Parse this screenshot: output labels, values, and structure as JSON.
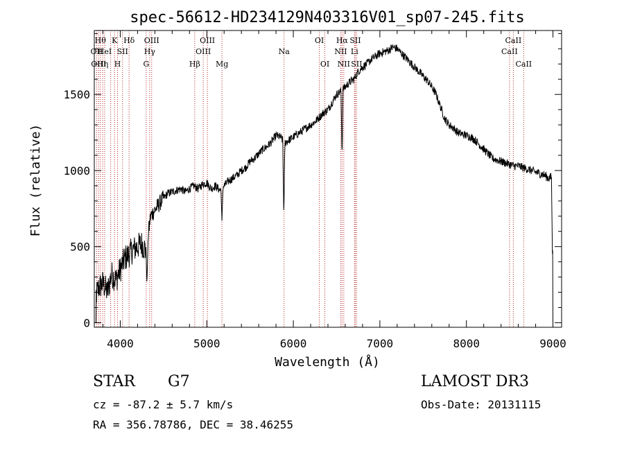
{
  "chart_data": {
    "type": "line",
    "title": "spec-56612-HD234129N403316V01_sp07-245.fits",
    "xlabel": "Wavelength (Å)",
    "ylabel": "Flux (relative)",
    "xlim": [
      3700,
      9100
    ],
    "ylim": [
      -30,
      1920
    ],
    "xticks": [
      4000,
      5000,
      6000,
      7000,
      8000,
      9000
    ],
    "yticks": [
      0,
      500,
      1000,
      1500
    ],
    "grid": false,
    "series": [
      {
        "x": [
          3700,
          3750,
          3800,
          3850,
          3900,
          3950,
          4000,
          4050,
          4100,
          4150,
          4200,
          4250,
          4300,
          4350,
          4400,
          4450,
          4500,
          4550,
          4600,
          4650,
          4700,
          4750,
          4800,
          4850,
          4900,
          4950,
          5000,
          5050,
          5100,
          5150,
          5200,
          5250,
          5300,
          5350,
          5400,
          5450,
          5500,
          5550,
          5600,
          5650,
          5700,
          5750,
          5800,
          5850,
          5900,
          5950,
          6000,
          6050,
          6100,
          6150,
          6200,
          6250,
          6300,
          6350,
          6400,
          6450,
          6500,
          6550,
          6600,
          6650,
          6700,
          6750,
          6800,
          6850,
          6900,
          6950,
          7000,
          7050,
          7100,
          7150,
          7200,
          7250,
          7300,
          7350,
          7400,
          7450,
          7500,
          7550,
          7600,
          7650,
          7700,
          7750,
          7800,
          7850,
          7900,
          7950,
          8000,
          8050,
          8100,
          8150,
          8200,
          8250,
          8300,
          8350,
          8400,
          8450,
          8500,
          8550,
          8600,
          8650,
          8700,
          8750,
          8800,
          8850,
          8900,
          8950,
          9000
        ],
        "y": [
          150,
          230,
          260,
          200,
          320,
          280,
          350,
          420,
          450,
          480,
          500,
          520,
          470,
          700,
          740,
          780,
          820,
          850,
          860,
          870,
          880,
          860,
          880,
          900,
          880,
          910,
          920,
          880,
          900,
          870,
          900,
          930,
          950,
          970,
          1000,
          1020,
          1060,
          1080,
          1110,
          1140,
          1160,
          1190,
          1230,
          1220,
          1180,
          1200,
          1220,
          1240,
          1260,
          1280,
          1300,
          1320,
          1350,
          1380,
          1400,
          1450,
          1500,
          1520,
          1550,
          1580,
          1600,
          1650,
          1680,
          1700,
          1730,
          1750,
          1770,
          1780,
          1790,
          1810,
          1800,
          1770,
          1740,
          1710,
          1680,
          1650,
          1620,
          1590,
          1550,
          1500,
          1420,
          1340,
          1300,
          1280,
          1250,
          1240,
          1230,
          1220,
          1200,
          1170,
          1140,
          1110,
          1080,
          1070,
          1060,
          1050,
          1040,
          1030,
          1030,
          1020,
          1010,
          1000,
          990,
          980,
          970,
          950,
          960
        ]
      }
    ],
    "absorption_dips": [
      {
        "x": 5890,
        "y": 700
      },
      {
        "x": 6563,
        "y": 1080
      },
      {
        "x": 4308,
        "y": 250
      },
      {
        "x": 5175,
        "y": 670
      },
      {
        "x": 8995,
        "y": 380
      }
    ],
    "line_markers": [
      {
        "wl": 3727,
        "label": "OII",
        "row": 2
      },
      {
        "wl": 3750,
        "label": "OIII",
        "row": 3
      },
      {
        "wl": 3770,
        "label": "Hθ",
        "row": 1
      },
      {
        "wl": 3797,
        "label": "Hη",
        "row": 3
      },
      {
        "wl": 3820,
        "label": "HeI",
        "row": 2
      },
      {
        "wl": 3889,
        "label": "",
        "row": 0
      },
      {
        "wl": 3934,
        "label": "K",
        "row": 1
      },
      {
        "wl": 3969,
        "label": "H",
        "row": 3
      },
      {
        "wl": 4026,
        "label": "SII",
        "row": 2
      },
      {
        "wl": 4102,
        "label": "Hδ",
        "row": 1
      },
      {
        "wl": 4300,
        "label": "G",
        "row": 3
      },
      {
        "wl": 4340,
        "label": "Hγ",
        "row": 2
      },
      {
        "wl": 4363,
        "label": "OIII",
        "row": 1
      },
      {
        "wl": 4861,
        "label": "Hβ",
        "row": 3
      },
      {
        "wl": 4959,
        "label": "OIII",
        "row": 2
      },
      {
        "wl": 5007,
        "label": "OIII",
        "row": 1
      },
      {
        "wl": 5175,
        "label": "Mg",
        "row": 3
      },
      {
        "wl": 5893,
        "label": "Na",
        "row": 2
      },
      {
        "wl": 6300,
        "label": "OI",
        "row": 1
      },
      {
        "wl": 6364,
        "label": "OI",
        "row": 3
      },
      {
        "wl": 6548,
        "label": "NII",
        "row": 2
      },
      {
        "wl": 6563,
        "label": "Hα",
        "row": 1
      },
      {
        "wl": 6583,
        "label": "NII",
        "row": 3
      },
      {
        "wl": 6707,
        "label": "Li",
        "row": 2
      },
      {
        "wl": 6716,
        "label": "SII",
        "row": 1
      },
      {
        "wl": 6731,
        "label": "SII",
        "row": 3
      },
      {
        "wl": 8498,
        "label": "CaII",
        "row": 2
      },
      {
        "wl": 8542,
        "label": "CaII",
        "row": 1
      },
      {
        "wl": 8662,
        "label": "CaII",
        "row": 3
      }
    ]
  },
  "info": {
    "object_type": "STAR",
    "subclass": "G7",
    "survey": "LAMOST DR3",
    "cz": "cz = -87.2 ± 5.7 km/s",
    "obs_date": "Obs-Date: 20131115",
    "coords": "RA = 356.78786, DEC =  38.46255"
  },
  "colors": {
    "spectrum": "#000000",
    "marker_line": "#b22222",
    "axis": "#000000"
  }
}
